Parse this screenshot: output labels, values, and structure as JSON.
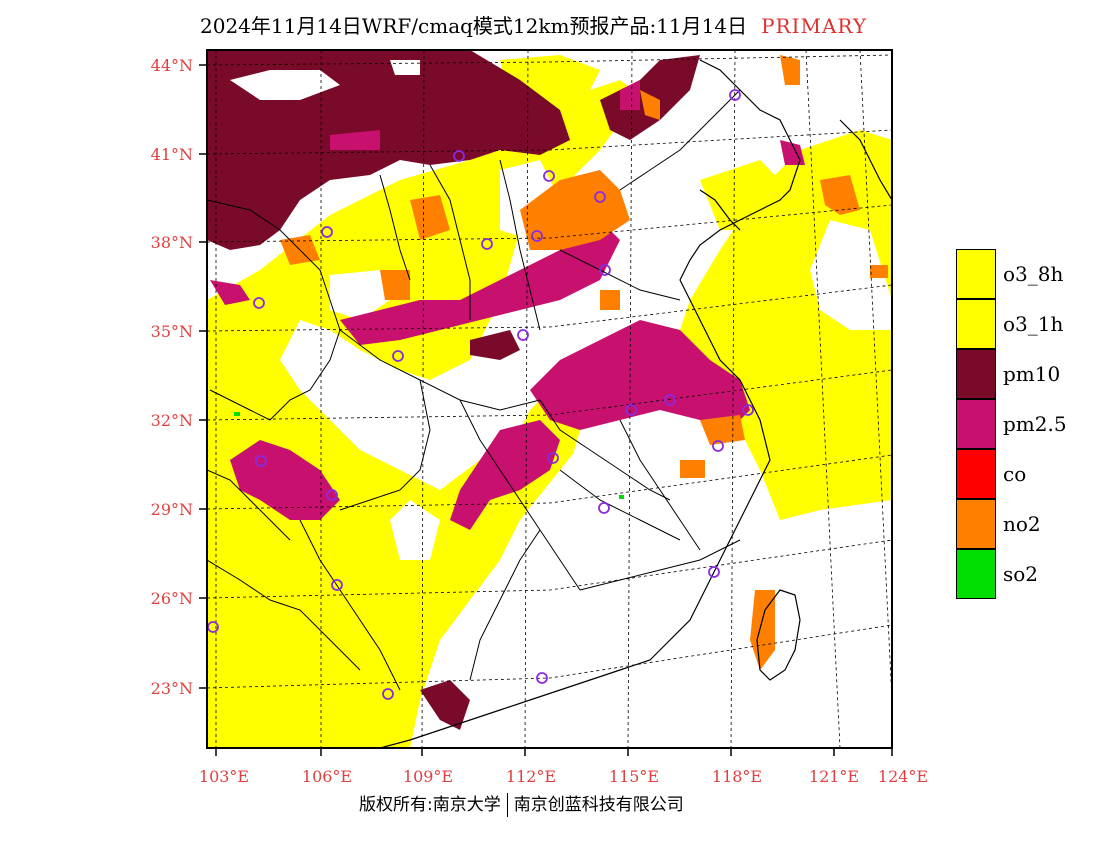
{
  "title": {
    "main": "2024年11月14日WRF/cmaq模式12km预报产品:11月14日",
    "tag": "PRIMARY"
  },
  "colors": {
    "axis_label": "#e04040",
    "pm10": "#7a0a2a",
    "pm25": "#c8106e",
    "o3": "#ffff00",
    "no2": "#ff8000",
    "co": "#ff0000",
    "so2": "#00dd00",
    "station": "#8a2be2"
  },
  "axes": {
    "lat_labels": [
      "44°N",
      "41°N",
      "38°N",
      "35°N",
      "32°N",
      "29°N",
      "26°N",
      "23°N"
    ],
    "lon_labels": [
      "103°E",
      "106°E",
      "109°E",
      "112°E",
      "115°E",
      "118°E",
      "121°E",
      "124°E"
    ]
  },
  "legend": [
    {
      "label": "o3_8h",
      "color": "#ffff00"
    },
    {
      "label": "o3_1h",
      "color": "#ffff00"
    },
    {
      "label": "pm10",
      "color": "#7a0a2a"
    },
    {
      "label": "pm2.5",
      "color": "#c8106e"
    },
    {
      "label": "co",
      "color": "#ff0000"
    },
    {
      "label": "no2",
      "color": "#ff8000"
    },
    {
      "label": "so2",
      "color": "#00dd00"
    }
  ],
  "footer": {
    "left": "版权所有:南京大学",
    "right": "南京创蓝科技有限公司"
  }
}
